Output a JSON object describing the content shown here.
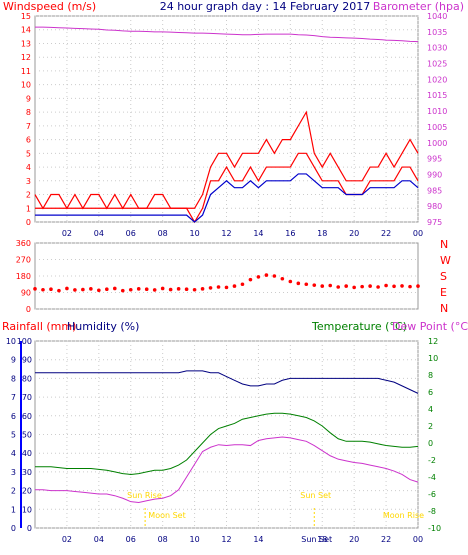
{
  "title": "24 hour graph day : 14 February 2017",
  "colors": {
    "wind": "#ff0000",
    "gust": "#ff0000",
    "avgwind": "#0000cc",
    "baro": "#cc33cc",
    "dir": "#ff0000",
    "humidity": "#000080",
    "temp": "#008000",
    "dew": "#cc33cc",
    "sun": "#ffd700",
    "frame": "#000080"
  },
  "chart_data": [
    {
      "type": "line",
      "left_label": "Windspeed (m/s)",
      "right_label": "Barometer (hpa)",
      "ylim_left": [
        0,
        15
      ],
      "ylim_right": [
        975,
        1040
      ],
      "yticks_left": [
        "0",
        "1",
        "2",
        "3",
        "4",
        "5",
        "6",
        "7",
        "8",
        "9",
        "10",
        "11",
        "12",
        "13",
        "14",
        "15"
      ],
      "yticks_right": [
        "975",
        "980",
        "985",
        "990",
        "995",
        "1000",
        "1005",
        "1010",
        "1015",
        "1020",
        "1025",
        "1030",
        "1035",
        "1040"
      ],
      "x_ticks": [
        "02",
        "04",
        "06",
        "08",
        "10",
        "12",
        "14",
        "16",
        "18",
        "20",
        "22",
        "00"
      ],
      "x": [
        0,
        0.5,
        1,
        1.5,
        2,
        2.5,
        3,
        3.5,
        4,
        4.5,
        5,
        5.5,
        6,
        6.5,
        7,
        7.5,
        8,
        8.5,
        9,
        9.5,
        10,
        10.5,
        11,
        11.5,
        12,
        12.5,
        13,
        13.5,
        14,
        14.5,
        15,
        15.5,
        16,
        16.5,
        17,
        17.5,
        18,
        18.5,
        19,
        19.5,
        20,
        20.5,
        21,
        21.5,
        22,
        22.5,
        23,
        23.5,
        24
      ],
      "series": [
        {
          "key": "gust",
          "values": [
            2,
            1,
            2,
            2,
            1,
            2,
            1,
            2,
            2,
            1,
            2,
            1,
            2,
            1,
            1,
            2,
            2,
            1,
            1,
            1,
            1,
            2,
            4,
            5,
            5,
            4,
            5,
            5,
            5,
            6,
            5,
            6,
            6,
            7,
            8,
            5,
            4,
            5,
            4,
            3,
            3,
            3,
            4,
            4,
            5,
            4,
            5,
            6,
            5
          ]
        },
        {
          "key": "wind",
          "values": [
            1,
            1,
            1,
            1,
            1,
            1,
            1,
            1,
            1,
            1,
            1,
            1,
            1,
            1,
            1,
            1,
            1,
            1,
            1,
            1,
            0,
            1,
            3,
            3,
            4,
            3,
            3,
            4,
            3,
            4,
            4,
            4,
            4,
            5,
            5,
            4,
            3,
            3,
            3,
            2,
            2,
            2,
            3,
            3,
            3,
            3,
            4,
            4,
            3
          ]
        },
        {
          "key": "avgwind",
          "values": [
            0.5,
            0.5,
            0.5,
            0.5,
            0.5,
            0.5,
            0.5,
            0.5,
            0.5,
            0.5,
            0.5,
            0.5,
            0.5,
            0.5,
            0.5,
            0.5,
            0.5,
            0.5,
            0.5,
            0.5,
            0,
            0.5,
            2,
            2.5,
            3,
            2.5,
            2.5,
            3,
            2.5,
            3,
            3,
            3,
            3,
            3.5,
            3.5,
            3,
            2.5,
            2.5,
            2.5,
            2,
            2,
            2,
            2.5,
            2.5,
            2.5,
            2.5,
            3,
            3,
            2.5
          ]
        },
        {
          "key": "baro",
          "values": [
            1036.5,
            1036.5,
            1036.4,
            1036.3,
            1036.2,
            1036.1,
            1036,
            1035.9,
            1035.8,
            1035.6,
            1035.5,
            1035.3,
            1035.2,
            1035.2,
            1035.1,
            1035,
            1035,
            1034.9,
            1034.8,
            1034.7,
            1034.6,
            1034.6,
            1034.5,
            1034.4,
            1034.3,
            1034.2,
            1034.1,
            1034.1,
            1034.2,
            1034.3,
            1034.3,
            1034.3,
            1034.3,
            1034.1,
            1034,
            1033.8,
            1033.5,
            1033.3,
            1033.2,
            1033.1,
            1033,
            1032.9,
            1032.7,
            1032.6,
            1032.4,
            1032.3,
            1032.2,
            1032,
            1031.9
          ]
        }
      ]
    },
    {
      "type": "scatter",
      "ylim": [
        0,
        360
      ],
      "yticks_left": [
        "0",
        "90",
        "180",
        "270",
        "360"
      ],
      "compass_labels": [
        "N",
        "W",
        "S",
        "E",
        "N"
      ],
      "x": [
        0,
        0.5,
        1,
        1.5,
        2,
        2.5,
        3,
        3.5,
        4,
        4.5,
        5,
        5.5,
        6,
        6.5,
        7,
        7.5,
        8,
        8.5,
        9,
        9.5,
        10,
        10.5,
        11,
        11.5,
        12,
        12.5,
        13,
        13.5,
        14,
        14.5,
        15,
        15.5,
        16,
        16.5,
        17,
        17.5,
        18,
        18.5,
        19,
        19.5,
        20,
        20.5,
        21,
        21.5,
        22,
        22.5,
        23,
        23.5,
        24
      ],
      "values": [
        110,
        105,
        108,
        100,
        112,
        104,
        106,
        110,
        102,
        108,
        112,
        100,
        105,
        110,
        108,
        104,
        112,
        106,
        110,
        108,
        105,
        110,
        115,
        120,
        118,
        125,
        135,
        160,
        175,
        185,
        180,
        165,
        150,
        140,
        135,
        130,
        125,
        128,
        120,
        125,
        118,
        122,
        125,
        120,
        128,
        124,
        126,
        122,
        125
      ]
    },
    {
      "type": "line",
      "left_label_1": "Rainfall (mm)",
      "left_label_2": "Humidity (%)",
      "right_label_1": "Temperature (°C)",
      "right_label_2": "Dew Point (°C)",
      "ylim_rain": [
        0,
        10
      ],
      "ylim_humidity": [
        0,
        100
      ],
      "ylim_temp": [
        -10,
        12
      ],
      "yticks_rain": [
        "0",
        "1",
        "2",
        "3",
        "4",
        "5",
        "6",
        "7",
        "8",
        "9",
        "10"
      ],
      "yticks_humidity": [
        "0",
        "10",
        "20",
        "30",
        "40",
        "50",
        "60",
        "70",
        "80",
        "90",
        "100"
      ],
      "yticks_temp": [
        "-10",
        "-8",
        "-6",
        "-4",
        "-2",
        "0",
        "2",
        "4",
        "6",
        "8",
        "10",
        "12"
      ],
      "x_ticks": [
        "02",
        "04",
        "06",
        "08",
        "10",
        "12",
        "14",
        "16",
        "18",
        "20",
        "22",
        "00"
      ],
      "x": [
        0,
        0.5,
        1,
        1.5,
        2,
        2.5,
        3,
        3.5,
        4,
        4.5,
        5,
        5.5,
        6,
        6.5,
        7,
        7.5,
        8,
        8.5,
        9,
        9.5,
        10,
        10.5,
        11,
        11.5,
        12,
        12.5,
        13,
        13.5,
        14,
        14.5,
        15,
        15.5,
        16,
        16.5,
        17,
        17.5,
        18,
        18.5,
        19,
        19.5,
        20,
        20.5,
        21,
        21.5,
        22,
        22.5,
        23,
        23.5,
        24
      ],
      "series": [
        {
          "key": "humidity",
          "values": [
            83,
            83,
            83,
            83,
            83,
            83,
            83,
            83,
            83,
            83,
            83,
            83,
            83,
            83,
            83,
            83,
            83,
            83,
            83,
            84,
            84,
            84,
            83,
            83,
            81,
            79,
            77,
            76,
            76,
            77,
            77,
            79,
            80,
            80,
            80,
            80,
            80,
            80,
            80,
            80,
            80,
            80,
            80,
            80,
            79,
            78,
            76,
            74,
            72
          ]
        },
        {
          "key": "temp",
          "values": [
            -2.8,
            -2.8,
            -2.8,
            -2.9,
            -3,
            -3,
            -3,
            -3,
            -3.1,
            -3.2,
            -3.4,
            -3.6,
            -3.7,
            -3.6,
            -3.4,
            -3.2,
            -3.2,
            -3,
            -2.6,
            -2,
            -1,
            0,
            1,
            1.7,
            2,
            2.3,
            2.8,
            3,
            3.2,
            3.4,
            3.5,
            3.5,
            3.4,
            3.2,
            3,
            2.6,
            2,
            1.2,
            0.5,
            0.2,
            0.2,
            0.2,
            0.1,
            -0.1,
            -0.3,
            -0.4,
            -0.5,
            -0.5,
            -0.4
          ]
        },
        {
          "key": "dew",
          "values": [
            -5.5,
            -5.5,
            -5.6,
            -5.6,
            -5.6,
            -5.7,
            -5.8,
            -5.9,
            -6,
            -6,
            -6.2,
            -6.5,
            -6.9,
            -7,
            -6.8,
            -6.6,
            -6.5,
            -6.2,
            -5.5,
            -4,
            -2.5,
            -1,
            -0.5,
            -0.2,
            -0.3,
            -0.2,
            -0.2,
            -0.3,
            0.3,
            0.5,
            0.6,
            0.7,
            0.6,
            0.4,
            0.2,
            -0.3,
            -0.9,
            -1.5,
            -1.9,
            -2.1,
            -2.3,
            -2.4,
            -2.6,
            -2.8,
            -3,
            -3.3,
            -3.7,
            -4.3,
            -4.6
          ]
        }
      ],
      "annotations": {
        "sun_rise": "Sun Rise",
        "moon_set": "Moon Set",
        "sun_set": "Sun Set",
        "sun_set_short": "Sun Set",
        "moon_rise": "Moon Rise"
      }
    }
  ]
}
